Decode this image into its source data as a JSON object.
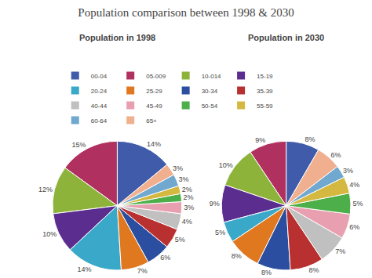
{
  "title": "Population comparison between 1998 & 2030",
  "chart_data": [
    {
      "type": "pie",
      "title": "Population in 1998",
      "categories": [
        "00-04",
        "05-009",
        "10-014",
        "15-19",
        "20-24",
        "25-29",
        "30-34",
        "35-39",
        "40-44",
        "45-49",
        "50-54",
        "55-59",
        "60-64",
        "65+"
      ],
      "values": [
        14,
        15,
        12,
        10,
        14,
        7,
        6,
        5,
        4,
        3,
        2,
        2,
        3,
        3
      ],
      "value_labels": [
        "14%",
        "15%",
        "12%",
        "10%",
        "14%",
        "7%",
        "6%",
        "5%",
        "4%",
        "3%",
        "2%",
        "2%",
        "3%",
        "3%"
      ],
      "colors": [
        "#3F5BA9",
        "#B03060",
        "#8DB33A",
        "#5B2D8E",
        "#3AA8C8",
        "#E07820",
        "#2B4EA0",
        "#B83030",
        "#C0C0C0",
        "#E8A0B0",
        "#4DAF4A",
        "#D4B840",
        "#70A8D0",
        "#F0B090"
      ],
      "data_labels": true,
      "legend": "top"
    },
    {
      "type": "pie",
      "title": "Population in 2030",
      "categories": [
        "00-04",
        "05-009",
        "10-014",
        "15-19",
        "20-24",
        "25-29",
        "30-34",
        "35-39",
        "40-44",
        "45-49",
        "50-54",
        "55-59",
        "60-64",
        "65+"
      ],
      "values": [
        8,
        9,
        10,
        9,
        5,
        8,
        8,
        8,
        7,
        6,
        5,
        4,
        3,
        6
      ],
      "value_labels": [
        "8%",
        "9%",
        "10%",
        "9%",
        "5%",
        "8%",
        "8%",
        "8%",
        "7%",
        "6%",
        "5%",
        "4%",
        "3%",
        "6%"
      ],
      "colors": [
        "#3F5BA9",
        "#B03060",
        "#8DB33A",
        "#5B2D8E",
        "#3AA8C8",
        "#E07820",
        "#2B4EA0",
        "#B83030",
        "#C0C0C0",
        "#E8A0B0",
        "#4DAF4A",
        "#D4B840",
        "#70A8D0",
        "#F0B090"
      ],
      "data_labels": true,
      "legend": "top"
    }
  ]
}
